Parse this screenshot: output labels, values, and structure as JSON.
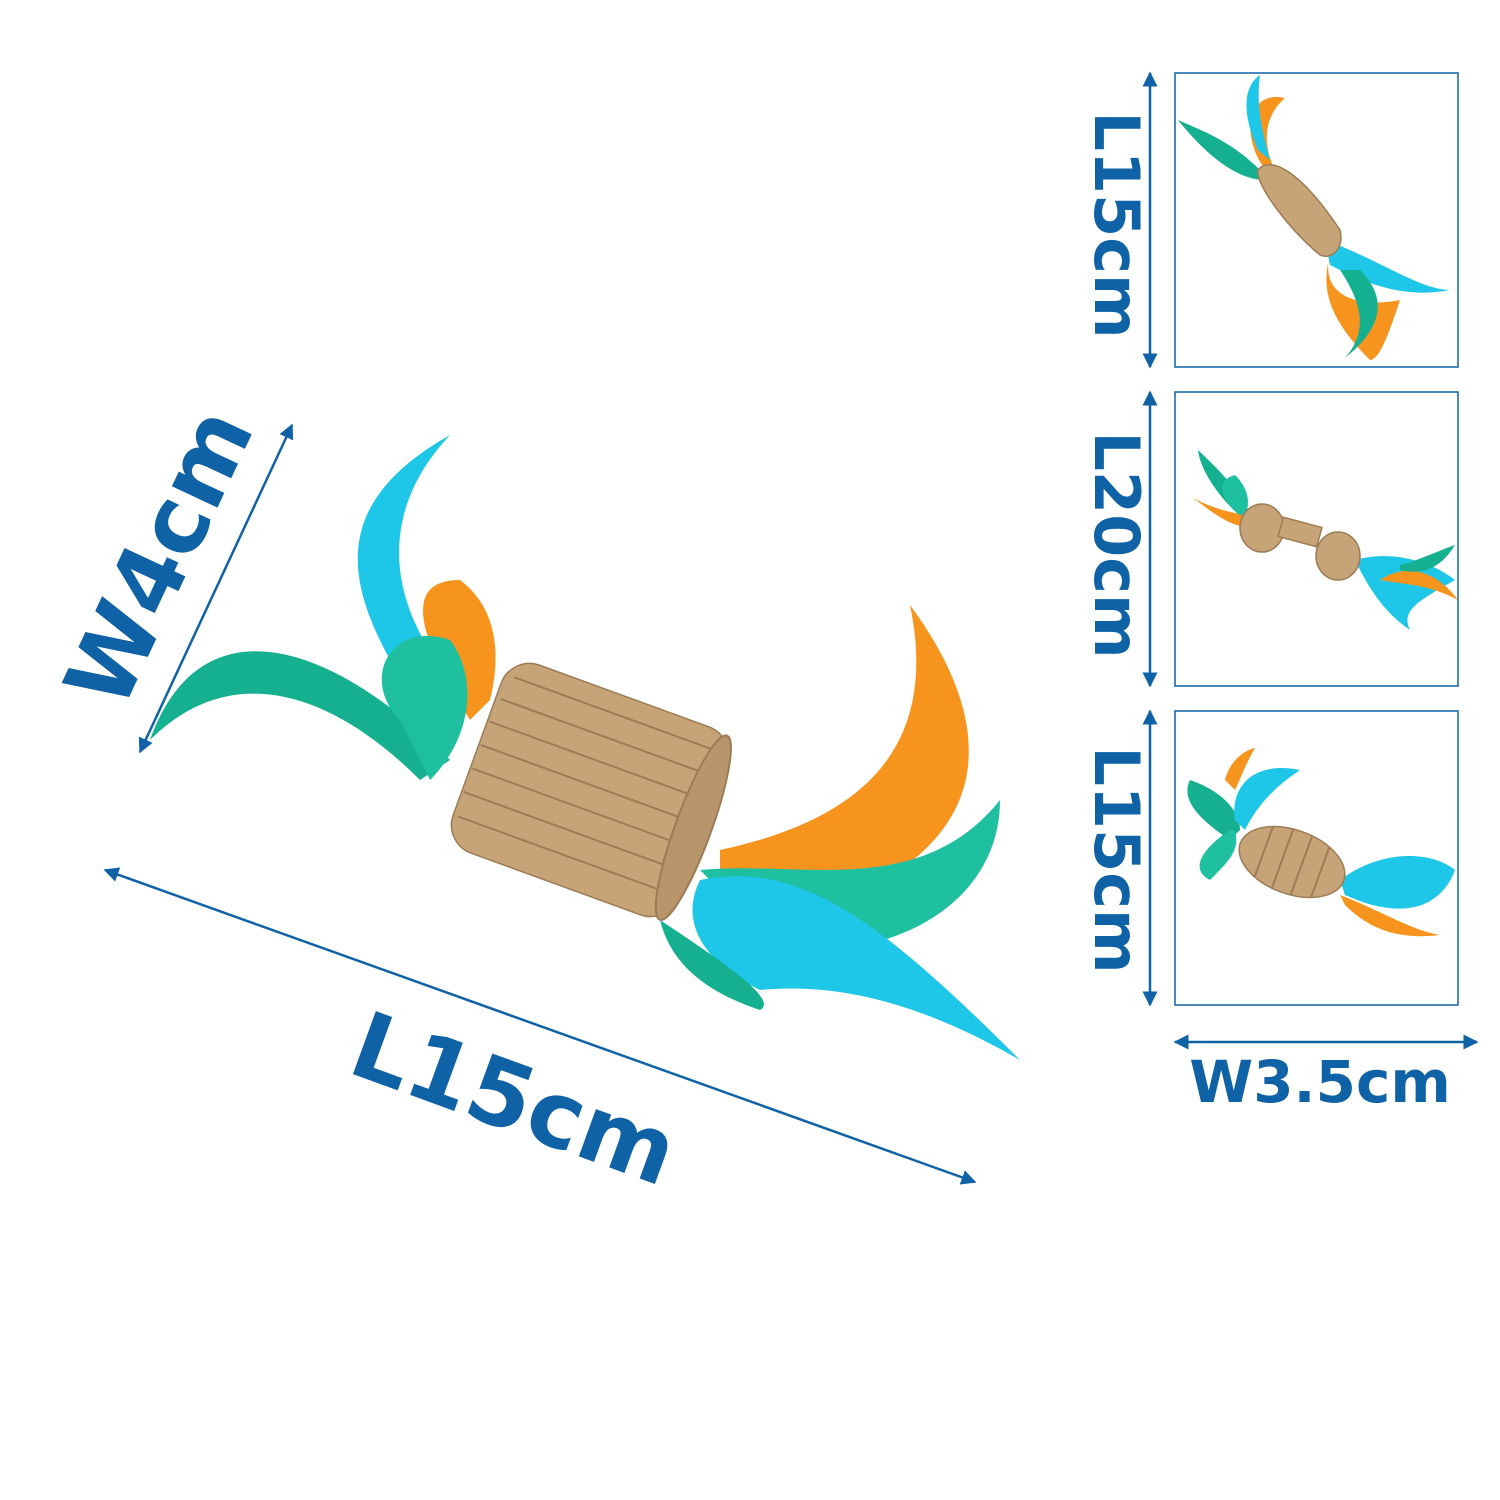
{
  "main": {
    "width_label": "W4cm",
    "length_label": "L15cm"
  },
  "variants": [
    {
      "length_label": "L15cm"
    },
    {
      "length_label": "L20cm"
    },
    {
      "length_label": "L15cm"
    }
  ],
  "variant_width_label": "W3.5cm"
}
